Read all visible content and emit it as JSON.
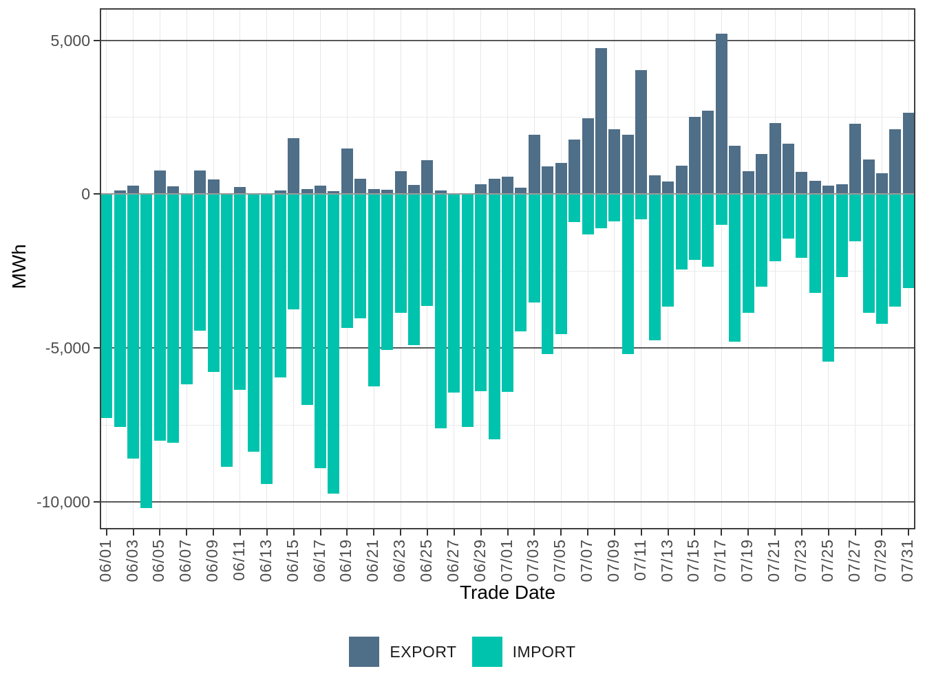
{
  "chart_data": {
    "type": "bar",
    "title": "",
    "xlabel": "Trade Date",
    "ylabel": "MWh",
    "ylim": [
      -10882,
      6038
    ],
    "bar_layout": "diverging-stacked-at-zero",
    "legend_position": "bottom",
    "grid": {
      "major_y": [
        5000,
        -5000,
        -10000
      ],
      "minor_y": [
        2500,
        -2500,
        -7500
      ],
      "zero_line": 0
    },
    "y_ticks": [
      {
        "value": 5000,
        "label": "5,000"
      },
      {
        "value": 0,
        "label": "0"
      },
      {
        "value": -5000,
        "label": "-5,000"
      },
      {
        "value": -10000,
        "label": "-10,000"
      }
    ],
    "x_tick_every": 2,
    "categories": [
      "06/01",
      "06/02",
      "06/03",
      "06/04",
      "06/05",
      "06/06",
      "06/07",
      "06/08",
      "06/09",
      "06/10",
      "06/11",
      "06/12",
      "06/13",
      "06/14",
      "06/15",
      "06/16",
      "06/17",
      "06/18",
      "06/19",
      "06/20",
      "06/21",
      "06/22",
      "06/23",
      "06/24",
      "06/25",
      "06/26",
      "06/27",
      "06/28",
      "06/29",
      "06/30",
      "07/01",
      "07/02",
      "07/03",
      "07/04",
      "07/05",
      "07/06",
      "07/07",
      "07/08",
      "07/09",
      "07/10",
      "07/11",
      "07/12",
      "07/13",
      "07/14",
      "07/15",
      "07/16",
      "07/17",
      "07/18",
      "07/19",
      "07/20",
      "07/21",
      "07/22",
      "07/23",
      "07/24",
      "07/25",
      "07/26",
      "07/27",
      "07/28",
      "07/29",
      "07/30",
      "07/31"
    ],
    "series": [
      {
        "name": "EXPORT",
        "color": "#4f6e87",
        "values": [
          30,
          130,
          290,
          0,
          780,
          260,
          40,
          780,
          480,
          0,
          230,
          0,
          0,
          130,
          1820,
          170,
          290,
          100,
          1490,
          500,
          170,
          150,
          750,
          310,
          1100,
          130,
          20,
          30,
          330,
          500,
          580,
          220,
          1920,
          900,
          1010,
          1770,
          2470,
          4740,
          2110,
          1920,
          4030,
          620,
          410,
          920,
          2520,
          2710,
          5220,
          1570,
          740,
          1310,
          2310,
          1630,
          730,
          440,
          280,
          320,
          2280,
          1130,
          680,
          2120,
          2640
        ]
      },
      {
        "name": "IMPORT",
        "color": "#00c3ad",
        "values": [
          -7260,
          -7550,
          -8590,
          -10190,
          -8010,
          -8060,
          -6170,
          -4440,
          -5760,
          -8860,
          -6340,
          -8370,
          -9400,
          -5950,
          -3750,
          -6850,
          -8890,
          -9730,
          -4350,
          -4040,
          -6230,
          -5050,
          -3840,
          -4910,
          -3620,
          -7590,
          -6440,
          -7560,
          -6400,
          -7960,
          -6420,
          -4450,
          -3520,
          -5190,
          -4540,
          -910,
          -1300,
          -1100,
          -890,
          -5200,
          -810,
          -4750,
          -3650,
          -2450,
          -2140,
          -2360,
          -990,
          -4780,
          -3840,
          -3000,
          -2180,
          -1450,
          -2060,
          -3200,
          -5430,
          -2680,
          -1530,
          -3840,
          -4200,
          -3650,
          -3050
        ]
      }
    ]
  }
}
